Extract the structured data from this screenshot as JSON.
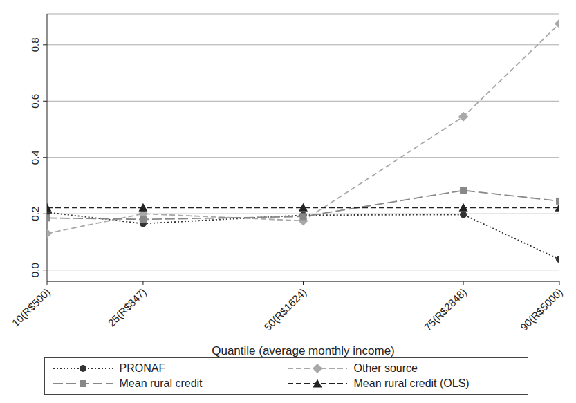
{
  "chart_data": {
    "type": "line",
    "xlabel": "Quantile (average monthly income)",
    "x": [
      10,
      25,
      50,
      75,
      90
    ],
    "xlim": [
      10,
      90
    ],
    "xticks": [
      {
        "value": 10,
        "label": "10(R$500)"
      },
      {
        "value": 25,
        "label": "25(R$847)"
      },
      {
        "value": 50,
        "label": "50(R$1624)"
      },
      {
        "value": 75,
        "label": "75(R$2848)"
      },
      {
        "value": 90,
        "label": "90(R$5000)"
      }
    ],
    "ylim": [
      -0.04,
      0.91
    ],
    "yticks": [
      {
        "value": 0,
        "label": "0.0"
      },
      0.2,
      0.4,
      0.6,
      0.8
    ],
    "grid": true,
    "legend": "bottom",
    "series": [
      {
        "name": "PRONAF",
        "color": "#333333",
        "marker": "circle",
        "line_style": "dotted",
        "values": [
          0.205,
          0.165,
          0.195,
          0.197,
          0.038
        ]
      },
      {
        "name": "Other source",
        "color": "#a8a8a8",
        "marker": "diamond",
        "line_style": "dashed",
        "values": [
          0.13,
          0.2,
          0.175,
          0.545,
          0.875
        ]
      },
      {
        "name": "Mean rural credit",
        "color": "#888888",
        "marker": "square",
        "line_style": "longdash",
        "values": [
          0.185,
          0.18,
          0.19,
          0.283,
          0.245
        ]
      },
      {
        "name": "Mean rural credit (OLS)",
        "color": "#222222",
        "marker": "triangle",
        "line_style": "dashed",
        "values": [
          0.222,
          0.222,
          0.222,
          0.222,
          0.222
        ]
      }
    ]
  }
}
